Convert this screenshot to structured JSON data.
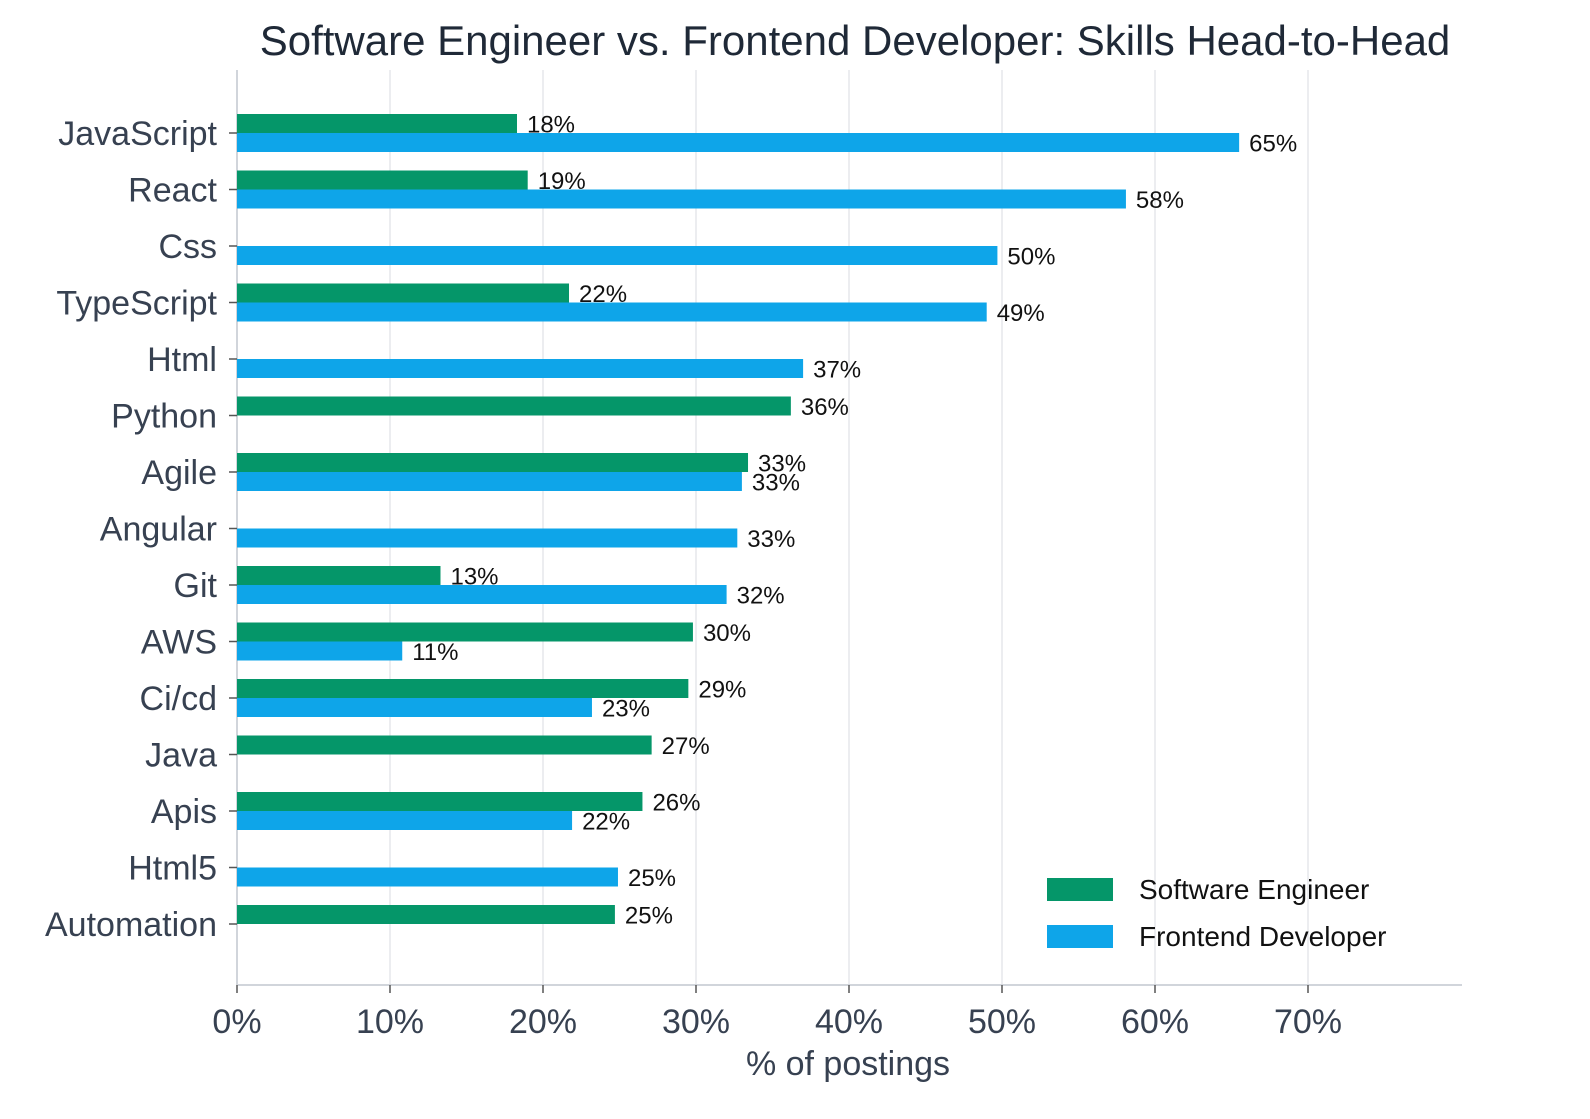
{
  "chart_data": {
    "type": "bar",
    "orientation": "horizontal",
    "title": "Software Engineer vs. Frontend Developer: Skills Head-to-Head",
    "xlabel": "% of postings",
    "ylabel": "",
    "xlim": [
      0,
      80
    ],
    "x_ticks": [
      "0%",
      "10%",
      "20%",
      "30%",
      "40%",
      "50%",
      "60%",
      "70%"
    ],
    "x_tick_values": [
      0,
      10,
      20,
      30,
      40,
      50,
      60,
      70
    ],
    "grid": "vertical",
    "legend_position": "bottom-right",
    "categories": [
      "JavaScript",
      "React",
      "Css",
      "TypeScript",
      "Html",
      "Python",
      "Agile",
      "Angular",
      "Git",
      "AWS",
      "Ci/cd",
      "Java",
      "Apis",
      "Html5",
      "Automation"
    ],
    "series": [
      {
        "name": "Software Engineer",
        "color": "#059669",
        "values": [
          18.3,
          19.0,
          null,
          21.7,
          null,
          36.2,
          33.4,
          null,
          13.3,
          29.8,
          29.5,
          27.1,
          26.5,
          null,
          24.7
        ],
        "labels": [
          "18%",
          "19%",
          "",
          "22%",
          "",
          "36%",
          "33%",
          "",
          "13%",
          "30%",
          "29%",
          "27%",
          "26%",
          "",
          "25%"
        ]
      },
      {
        "name": "Frontend Developer",
        "color": "#0ea5e9",
        "values": [
          65.5,
          58.1,
          49.7,
          49.0,
          37.0,
          null,
          33.0,
          32.7,
          32.0,
          10.8,
          23.2,
          null,
          21.9,
          24.9,
          null
        ],
        "labels": [
          "65%",
          "58%",
          "50%",
          "49%",
          "37%",
          "",
          "33%",
          "33%",
          "32%",
          "11%",
          "23%",
          "",
          "22%",
          "25%",
          ""
        ]
      }
    ]
  }
}
